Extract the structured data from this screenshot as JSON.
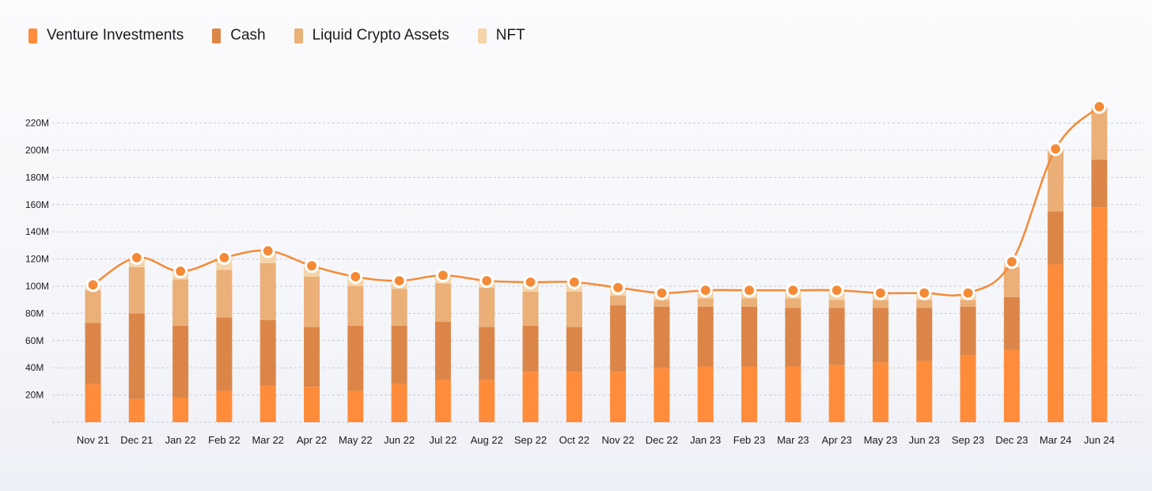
{
  "chart_data": {
    "type": "bar",
    "stacked": true,
    "overlay_line": "total",
    "categories": [
      "Nov 21",
      "Dec 21",
      "Jan 22",
      "Feb 22",
      "Mar 22",
      "Apr 22",
      "May 22",
      "Jun 22",
      "Jul 22",
      "Aug 22",
      "Sep 22",
      "Oct 22",
      "Nov 22",
      "Dec 22",
      "Jan 23",
      "Feb 23",
      "Mar 23",
      "Apr 23",
      "May 23",
      "Jun 23",
      "Sep 23",
      "Dec 23",
      "Mar 24",
      "Jun 24"
    ],
    "series": [
      {
        "name": "Venture Investments",
        "color": "#FF8C3A",
        "values": [
          28,
          17,
          18,
          23,
          27,
          26,
          23,
          28,
          31,
          31,
          37,
          37,
          37,
          40,
          41,
          41,
          41,
          42,
          44,
          45,
          49,
          53,
          116,
          158
        ]
      },
      {
        "name": "Cash",
        "color": "#DB8648",
        "values": [
          45,
          63,
          53,
          54,
          48,
          44,
          48,
          43,
          43,
          39,
          34,
          33,
          49,
          45,
          44,
          44,
          43,
          42,
          40,
          39,
          36,
          39,
          39,
          35
        ]
      },
      {
        "name": "Liquid Crypto Assets",
        "color": "#EBAF78",
        "values": [
          24,
          34,
          34,
          35,
          42,
          37,
          29,
          27,
          28,
          29,
          25,
          26,
          7,
          5,
          6,
          6,
          7,
          6,
          6,
          6,
          5,
          22,
          45,
          38
        ]
      },
      {
        "name": "NFT",
        "color": "#F5D4A8",
        "values": [
          4,
          7,
          6,
          9,
          9,
          8,
          7,
          6,
          6,
          5,
          7,
          7,
          6,
          5,
          6,
          6,
          6,
          7,
          5,
          5,
          5,
          4,
          1,
          1
        ]
      }
    ],
    "totals": [
      101,
      121,
      111,
      121,
      126,
      115,
      107,
      104,
      108,
      104,
      103,
      103,
      99,
      95,
      97,
      97,
      97,
      97,
      95,
      95,
      95,
      118,
      201,
      232
    ],
    "line_color": "#F58A36",
    "ylim": [
      0,
      240
    ],
    "yticks": [
      "20M",
      "40M",
      "60M",
      "80M",
      "100M",
      "120M",
      "140M",
      "160M",
      "180M",
      "200M",
      "220M"
    ],
    "ytick_values": [
      20,
      40,
      60,
      80,
      100,
      120,
      140,
      160,
      180,
      200,
      220
    ],
    "grid": true,
    "legend_position": "top-left"
  }
}
